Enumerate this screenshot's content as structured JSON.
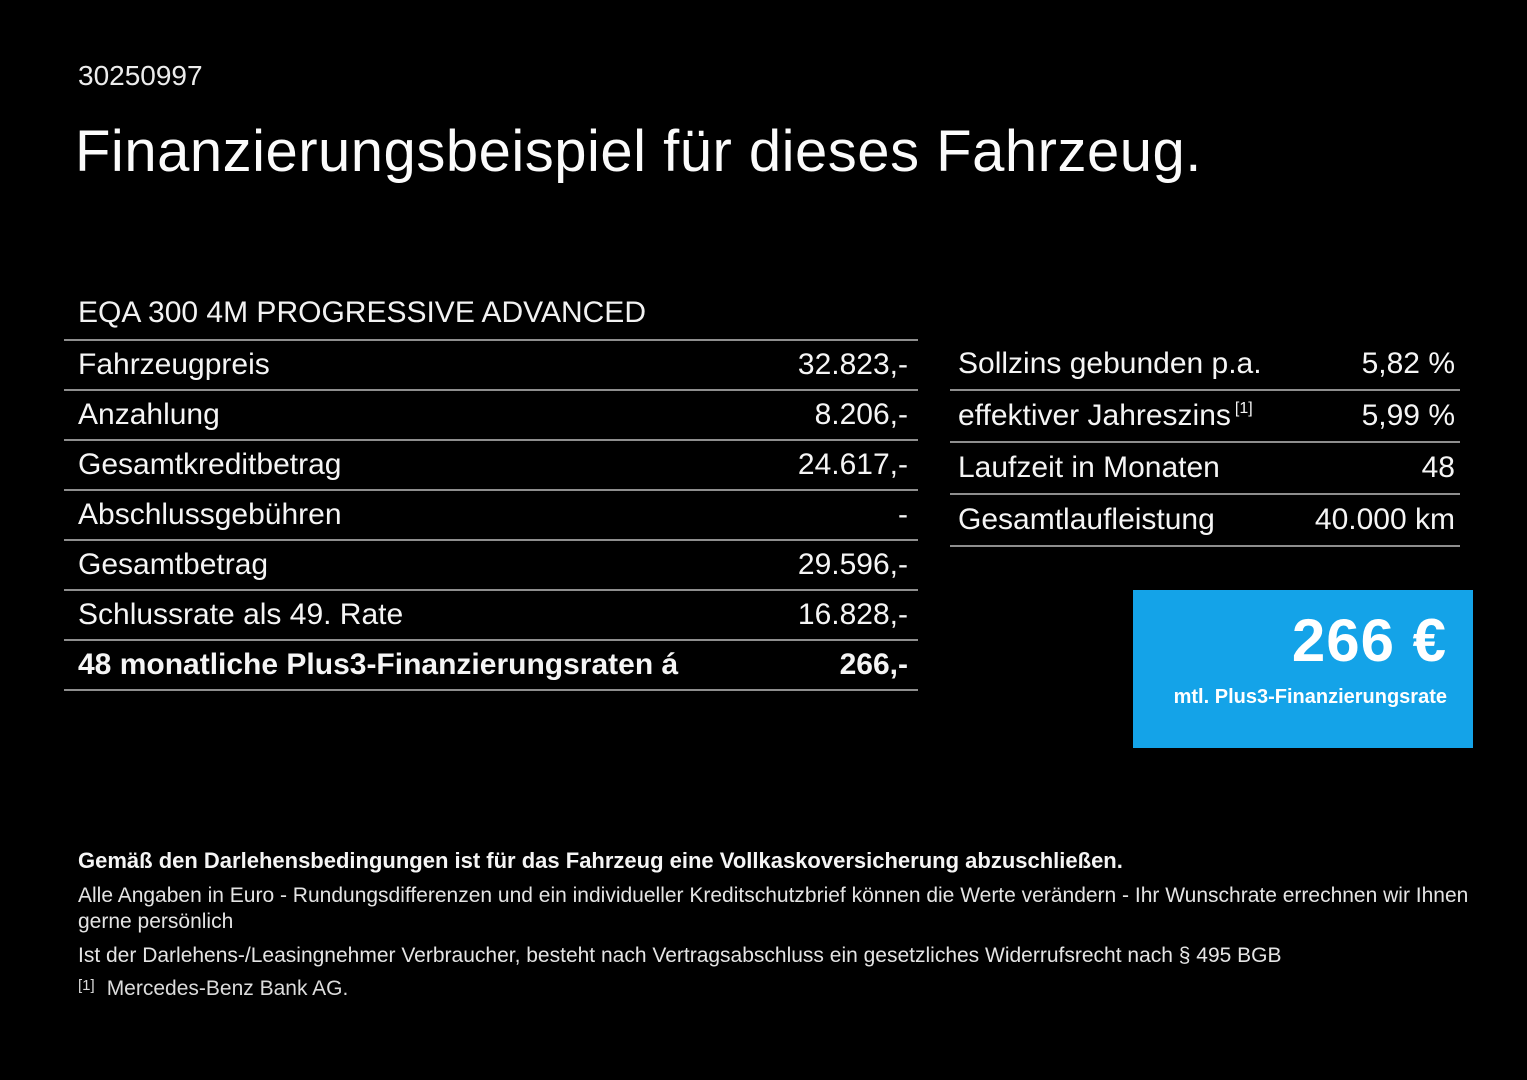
{
  "page": {
    "id_number": "30250997",
    "title": "Finanzierungsbeispiel für dieses Fahrzeug.",
    "vehicle_name": "EQA 300 4M PROGRESSIVE ADVANCED"
  },
  "finance_table": {
    "rows": [
      {
        "label": "Fahrzeugpreis",
        "value": "32.823,-"
      },
      {
        "label": "Anzahlung",
        "value": "8.206,-"
      },
      {
        "label": "Gesamtkreditbetrag",
        "value": "24.617,-"
      },
      {
        "label": "Abschlussgebühren",
        "value": "-"
      },
      {
        "label": "Gesamtbetrag",
        "value": "29.596,-"
      },
      {
        "label": "Schlussrate als 49. Rate",
        "value": "16.828,-"
      },
      {
        "label": "48 monatliche Plus3-Finanzierungsraten á",
        "value": "266,-"
      }
    ]
  },
  "conditions_table": {
    "rows": [
      {
        "label": "Sollzins gebunden p.a.",
        "sup": "",
        "value": "5,82 %"
      },
      {
        "label": "effektiver Jahreszins",
        "sup": "[1]",
        "value": "5,99 %"
      },
      {
        "label": "Laufzeit in Monaten",
        "sup": "",
        "value": "48"
      },
      {
        "label": "Gesamtlaufleistung",
        "sup": "",
        "value": "40.000 km"
      }
    ]
  },
  "rate_box": {
    "amount": "266 €",
    "caption": "mtl. Plus3-Finanzierungsrate"
  },
  "footer": {
    "bold_note": "Gemäß den Darlehensbedingungen ist für das Fahrzeug eine Vollkaskoversicherung abzuschließen.",
    "note_line1": "Alle Angaben in Euro - Rundungsdifferenzen und ein individueller Kreditschutzbrief können die Werte verändern - Ihr Wunschrate errechnen wir Ihnen gerne persönlich",
    "note_line2": "Ist der Darlehens-/Leasingnehmer Verbraucher, besteht nach Vertragsabschluss ein gesetzliches Widerrufsrecht nach § 495 BGB",
    "footnote_marker": "[1]",
    "footnote_text": "Mercedes-Benz Bank AG."
  },
  "colors": {
    "background": "#000000",
    "text": "#f5f5f5",
    "divider": "#8e8e8e",
    "accent_blue": "#14a3e8"
  }
}
